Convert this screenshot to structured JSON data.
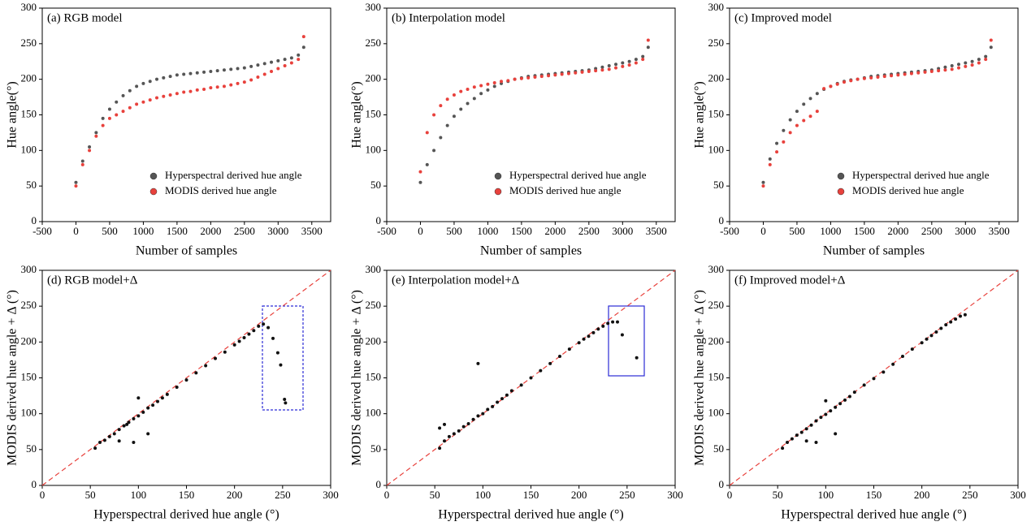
{
  "chart_data": [
    {
      "type": "scatter",
      "title": "(a) RGB model",
      "xlabel": "Number of samples",
      "ylabel": "Hue angle(°)",
      "xlim": [
        -500,
        3780
      ],
      "ylim": [
        0,
        300
      ],
      "xticks": [
        -500,
        0,
        500,
        1000,
        1500,
        2000,
        2500,
        3000,
        3500
      ],
      "yticks": [
        0,
        50,
        100,
        150,
        200,
        250,
        300
      ],
      "legend": "lower right",
      "x": [
        0,
        100,
        200,
        300,
        400,
        500,
        600,
        700,
        800,
        900,
        1000,
        1100,
        1200,
        1300,
        1400,
        1500,
        1600,
        1700,
        1800,
        1900,
        2000,
        2100,
        2200,
        2300,
        2400,
        2500,
        2600,
        2700,
        2800,
        2900,
        3000,
        3100,
        3200,
        3300,
        3380
      ],
      "series": [
        {
          "name": "Hyperspectral derived hue angle",
          "color": "#555555",
          "values": [
            55,
            85,
            105,
            125,
            145,
            158,
            168,
            177,
            184,
            190,
            194,
            197,
            200,
            202,
            204,
            206,
            207,
            208,
            209,
            210,
            211,
            212,
            213,
            214,
            215,
            216,
            218,
            220,
            222,
            224,
            226,
            228,
            230,
            234,
            245
          ]
        },
        {
          "name": "MODIS derived hue angle",
          "color": "#e8413c",
          "values": [
            50,
            80,
            100,
            120,
            135,
            145,
            150,
            155,
            160,
            165,
            168,
            171,
            174,
            176,
            178,
            180,
            182,
            183,
            185,
            186,
            188,
            189,
            190,
            192,
            194,
            196,
            199,
            203,
            207,
            211,
            215,
            219,
            223,
            228,
            260
          ]
        }
      ]
    },
    {
      "type": "scatter",
      "title": "(b) Interpolation model",
      "xlabel": "Number of samples",
      "ylabel": "Hue angle(°)",
      "xlim": [
        -500,
        3780
      ],
      "ylim": [
        0,
        300
      ],
      "xticks": [
        -500,
        0,
        500,
        1000,
        1500,
        2000,
        2500,
        3000,
        3500
      ],
      "yticks": [
        0,
        50,
        100,
        150,
        200,
        250,
        300
      ],
      "legend": "lower right",
      "x": [
        0,
        100,
        200,
        300,
        400,
        500,
        600,
        700,
        800,
        900,
        1000,
        1100,
        1200,
        1300,
        1400,
        1500,
        1600,
        1700,
        1800,
        1900,
        2000,
        2100,
        2200,
        2300,
        2400,
        2500,
        2600,
        2700,
        2800,
        2900,
        3000,
        3100,
        3200,
        3300,
        3380
      ],
      "series": [
        {
          "name": "Hyperspectral derived hue angle",
          "color": "#555555",
          "values": [
            55,
            80,
            100,
            118,
            135,
            148,
            158,
            166,
            173,
            180,
            185,
            190,
            194,
            197,
            200,
            202,
            204,
            205,
            206,
            207,
            208,
            209,
            210,
            211,
            212,
            213,
            215,
            217,
            219,
            221,
            223,
            225,
            228,
            232,
            245
          ]
        },
        {
          "name": "MODIS derived hue angle",
          "color": "#e8413c",
          "values": [
            70,
            125,
            150,
            163,
            172,
            178,
            183,
            186,
            189,
            191,
            193,
            195,
            197,
            198,
            200,
            201,
            202,
            203,
            204,
            205,
            206,
            207,
            208,
            209,
            210,
            211,
            212,
            213,
            214,
            216,
            218,
            220,
            223,
            228,
            255
          ]
        }
      ]
    },
    {
      "type": "scatter",
      "title": "(c) Improved model",
      "xlabel": "Number of samples",
      "ylabel": "Hue angle(°)",
      "xlim": [
        -500,
        3780
      ],
      "ylim": [
        0,
        300
      ],
      "xticks": [
        -500,
        0,
        500,
        1000,
        1500,
        2000,
        2500,
        3000,
        3500
      ],
      "yticks": [
        0,
        50,
        100,
        150,
        200,
        250,
        300
      ],
      "legend": "lower right",
      "x": [
        0,
        100,
        200,
        300,
        400,
        500,
        600,
        700,
        800,
        900,
        1000,
        1100,
        1200,
        1300,
        1400,
        1500,
        1600,
        1700,
        1800,
        1900,
        2000,
        2100,
        2200,
        2300,
        2400,
        2500,
        2600,
        2700,
        2800,
        2900,
        3000,
        3100,
        3200,
        3300,
        3380
      ],
      "series": [
        {
          "name": "Hyperspectral derived hue angle",
          "color": "#555555",
          "values": [
            55,
            88,
            110,
            128,
            143,
            155,
            165,
            173,
            180,
            186,
            190,
            194,
            197,
            199,
            200,
            202,
            204,
            205,
            206,
            207,
            208,
            209,
            210,
            211,
            212,
            213,
            215,
            217,
            219,
            221,
            223,
            225,
            228,
            232,
            245
          ]
        },
        {
          "name": "MODIS derived hue angle",
          "color": "#e8413c",
          "values": [
            50,
            80,
            98,
            112,
            125,
            135,
            142,
            148,
            155,
            187,
            190,
            193,
            196,
            198,
            200,
            201,
            202,
            203,
            204,
            205,
            206,
            207,
            208,
            209,
            210,
            211,
            212,
            213,
            214,
            216,
            218,
            220,
            223,
            228,
            255
          ]
        }
      ]
    },
    {
      "type": "scatter",
      "title": "(d) RGB model+Δ",
      "xlabel": "Hyperspectral derived hue angle (°)",
      "ylabel": "MODIS derived hue angle + Δ (°)",
      "xlim": [
        0,
        300
      ],
      "ylim": [
        0,
        300
      ],
      "xticks": [
        0,
        50,
        100,
        150,
        200,
        250,
        300
      ],
      "yticks": [
        0,
        50,
        100,
        150,
        200,
        250,
        300
      ],
      "color": "#111111",
      "x": [
        55,
        60,
        65,
        70,
        75,
        80,
        85,
        88,
        90,
        95,
        100,
        105,
        110,
        115,
        120,
        125,
        130,
        140,
        150,
        160,
        170,
        180,
        190,
        200,
        205,
        210,
        215,
        220,
        225,
        230,
        235,
        240,
        245,
        248,
        252,
        253,
        80,
        95,
        110,
        100
      ],
      "values": [
        52,
        60,
        63,
        68,
        72,
        78,
        83,
        85,
        88,
        93,
        97,
        102,
        108,
        112,
        117,
        122,
        127,
        137,
        147,
        157,
        167,
        177,
        186,
        196,
        201,
        206,
        211,
        216,
        222,
        225,
        220,
        205,
        185,
        168,
        120,
        115,
        62,
        60,
        72,
        122
      ]
    },
    {
      "type": "scatter",
      "title": "(e) Interpolation model+Δ",
      "xlabel": "Hyperspectral derived hue angle (°)",
      "ylabel": "MODIS derived hue angle + Δ (°)",
      "xlim": [
        0,
        300
      ],
      "ylim": [
        0,
        300
      ],
      "xticks": [
        0,
        50,
        100,
        150,
        200,
        250,
        300
      ],
      "yticks": [
        0,
        50,
        100,
        150,
        200,
        250,
        300
      ],
      "color": "#111111",
      "x": [
        55,
        60,
        65,
        70,
        75,
        80,
        85,
        90,
        95,
        100,
        105,
        110,
        115,
        120,
        125,
        130,
        140,
        150,
        160,
        170,
        180,
        190,
        200,
        205,
        210,
        215,
        220,
        225,
        230,
        235,
        240,
        245,
        260,
        95,
        55,
        60
      ],
      "values": [
        52,
        62,
        68,
        72,
        76,
        82,
        86,
        92,
        97,
        100,
        106,
        110,
        116,
        121,
        126,
        132,
        140,
        150,
        160,
        170,
        180,
        190,
        199,
        204,
        208,
        213,
        218,
        222,
        226,
        228,
        228,
        210,
        178,
        170,
        80,
        85
      ]
    },
    {
      "type": "scatter",
      "title": "(f) Improved model+Δ",
      "xlabel": "Hyperspectral derived hue angle (°)",
      "ylabel": "MODIS derived hue angle + Δ (°)",
      "xlim": [
        0,
        300
      ],
      "ylim": [
        0,
        300
      ],
      "xticks": [
        0,
        50,
        100,
        150,
        200,
        250,
        300
      ],
      "yticks": [
        0,
        50,
        100,
        150,
        200,
        250,
        300
      ],
      "color": "#111111",
      "x": [
        55,
        60,
        65,
        70,
        75,
        80,
        85,
        90,
        95,
        100,
        105,
        110,
        115,
        120,
        125,
        130,
        140,
        150,
        160,
        170,
        180,
        190,
        200,
        205,
        210,
        215,
        220,
        225,
        230,
        235,
        240,
        245,
        80,
        90,
        110,
        100
      ],
      "values": [
        52,
        60,
        65,
        70,
        74,
        79,
        84,
        90,
        95,
        99,
        104,
        109,
        114,
        119,
        124,
        130,
        140,
        149,
        158,
        169,
        180,
        190,
        199,
        204,
        209,
        214,
        219,
        224,
        228,
        232,
        236,
        238,
        62,
        60,
        72,
        118
      ]
    }
  ]
}
